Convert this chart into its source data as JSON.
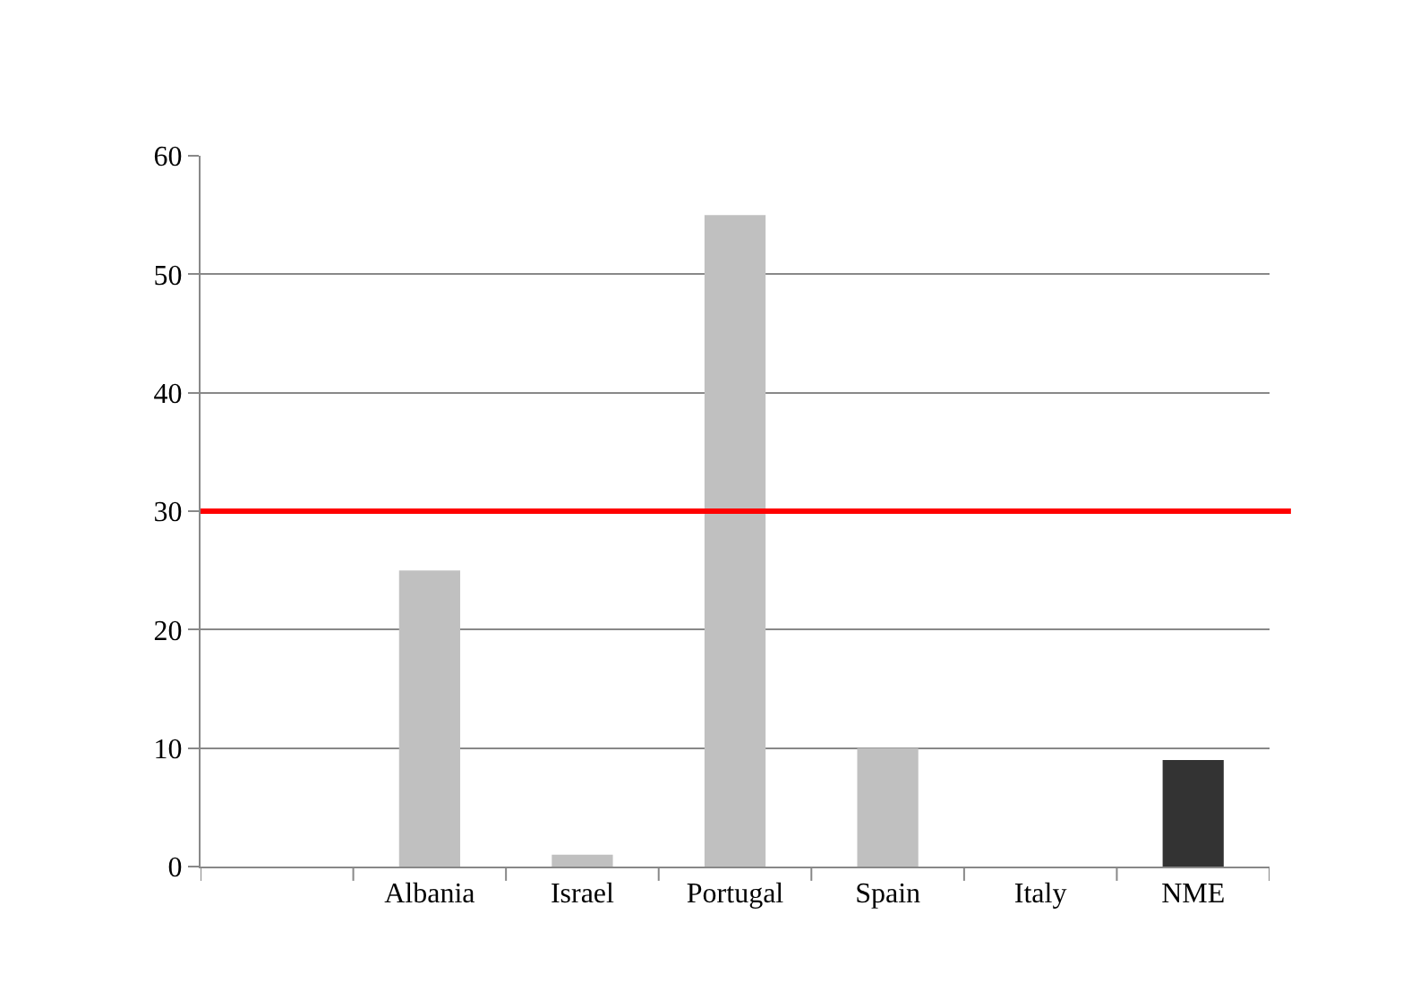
{
  "chart_data": {
    "type": "bar",
    "categories": [
      null,
      "Albania",
      "Israel",
      "Portugal",
      "Spain",
      "Italy",
      "NME"
    ],
    "values": [
      null,
      25,
      1,
      55,
      10,
      0,
      9
    ],
    "colors": [
      "#c0c0c0",
      "#c0c0c0",
      "#c0c0c0",
      "#c0c0c0",
      "#c0c0c0",
      "#c0c0c0",
      "#333333"
    ],
    "ylim": [
      0,
      60
    ],
    "yticks": [
      0,
      10,
      20,
      30,
      40,
      50,
      60
    ],
    "grid": "y",
    "legend": false,
    "ref_lines": [
      {
        "axis": "y",
        "value": 30,
        "color": "#ff0000",
        "line_style": "solid"
      }
    ]
  }
}
